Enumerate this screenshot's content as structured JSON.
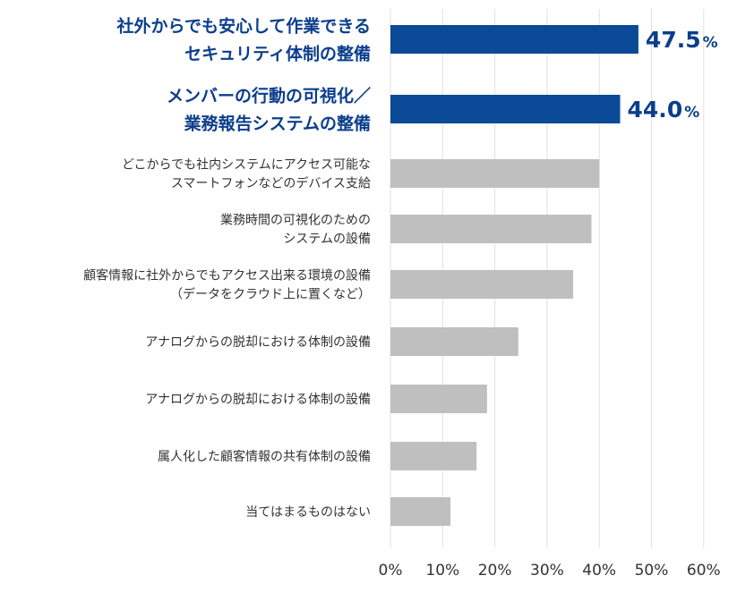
{
  "chart_data": {
    "type": "bar",
    "orientation": "horizontal",
    "title": "",
    "xlabel": "",
    "ylabel": "",
    "xlim": [
      0,
      60
    ],
    "grid": true,
    "legend": "none",
    "colors": {
      "highlight": "#0b4a96",
      "default": "#bfbfbf",
      "grid": "#e0e0e0",
      "label_highlight": "#0b3e8c",
      "label_default": "#333333"
    },
    "x_ticks": [
      "0%",
      "10%",
      "20%",
      "30%",
      "40%",
      "50%",
      "60%"
    ],
    "categories": [
      {
        "lines": [
          "社外からでも安心して作業できる",
          "セキュリティ体制の整備"
        ],
        "value": 47.5,
        "highlight": true,
        "label_int": "47.",
        "label_dec": "5",
        "label_unit": "%"
      },
      {
        "lines": [
          "メンバーの行動の可視化／",
          "業務報告システムの整備"
        ],
        "value": 44.0,
        "highlight": true,
        "label_int": "44.",
        "label_dec": "0",
        "label_unit": "%"
      },
      {
        "lines": [
          "どこからでも社内システムにアクセス可能な",
          "スマートフォンなどのデバイス支給"
        ],
        "value": 40.0,
        "highlight": false
      },
      {
        "lines": [
          "業務時間の可視化のための",
          "システムの設備"
        ],
        "value": 38.5,
        "highlight": false
      },
      {
        "lines": [
          "顧客情報に社外からでもアクセス出来る環境の設備",
          "（データをクラウド上に置くなど）"
        ],
        "value": 35.0,
        "highlight": false
      },
      {
        "lines": [
          "アナログからの脱却における体制の設備"
        ],
        "value": 24.5,
        "highlight": false
      },
      {
        "lines": [
          "アナログからの脱却における体制の設備"
        ],
        "value": 18.5,
        "highlight": false
      },
      {
        "lines": [
          "属人化した顧客情報の共有体制の設備"
        ],
        "value": 16.5,
        "highlight": false
      },
      {
        "lines": [
          "当てはまるものはない"
        ],
        "value": 11.5,
        "highlight": false
      }
    ]
  }
}
